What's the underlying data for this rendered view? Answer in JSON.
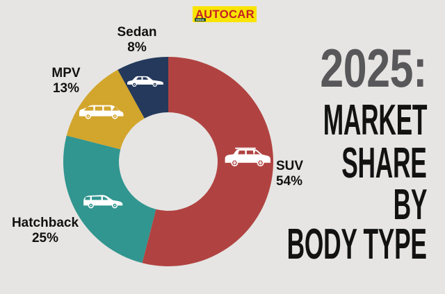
{
  "page": {
    "background_color": "#e6e5e3"
  },
  "logo": {
    "text": "AUTOCAR",
    "badge": "INDIA",
    "bg_color": "#f9e400",
    "text_color": "#c42127",
    "badge_color": "#234e2c"
  },
  "title": {
    "lines": [
      {
        "text": "2025:",
        "color": "#58585a"
      },
      {
        "text": "MARKET",
        "color": "#121212"
      },
      {
        "text": "SHARE",
        "color": "#121212"
      },
      {
        "text": "BY",
        "color": "#121212"
      },
      {
        "text": "BODY TYPE",
        "color": "#121212"
      }
    ]
  },
  "chart_data": {
    "type": "pie",
    "subtype": "donut",
    "title": "2025: Market share by body type",
    "start_angle_deg": 0,
    "direction": "clockwise",
    "legend_position": "around-slices",
    "slices": [
      {
        "label": "SUV",
        "value": 54,
        "pct_label": "54%",
        "color": "#b04341",
        "icon": "suv-icon"
      },
      {
        "label": "Hatchback",
        "value": 25,
        "pct_label": "25%",
        "color": "#31968f",
        "icon": "hatchback-icon"
      },
      {
        "label": "MPV",
        "value": 13,
        "pct_label": "13%",
        "color": "#d2a52c",
        "icon": "mpv-icon"
      },
      {
        "label": "Sedan",
        "value": 8,
        "pct_label": "8%",
        "color": "#24395b",
        "icon": "sedan-icon"
      }
    ]
  }
}
